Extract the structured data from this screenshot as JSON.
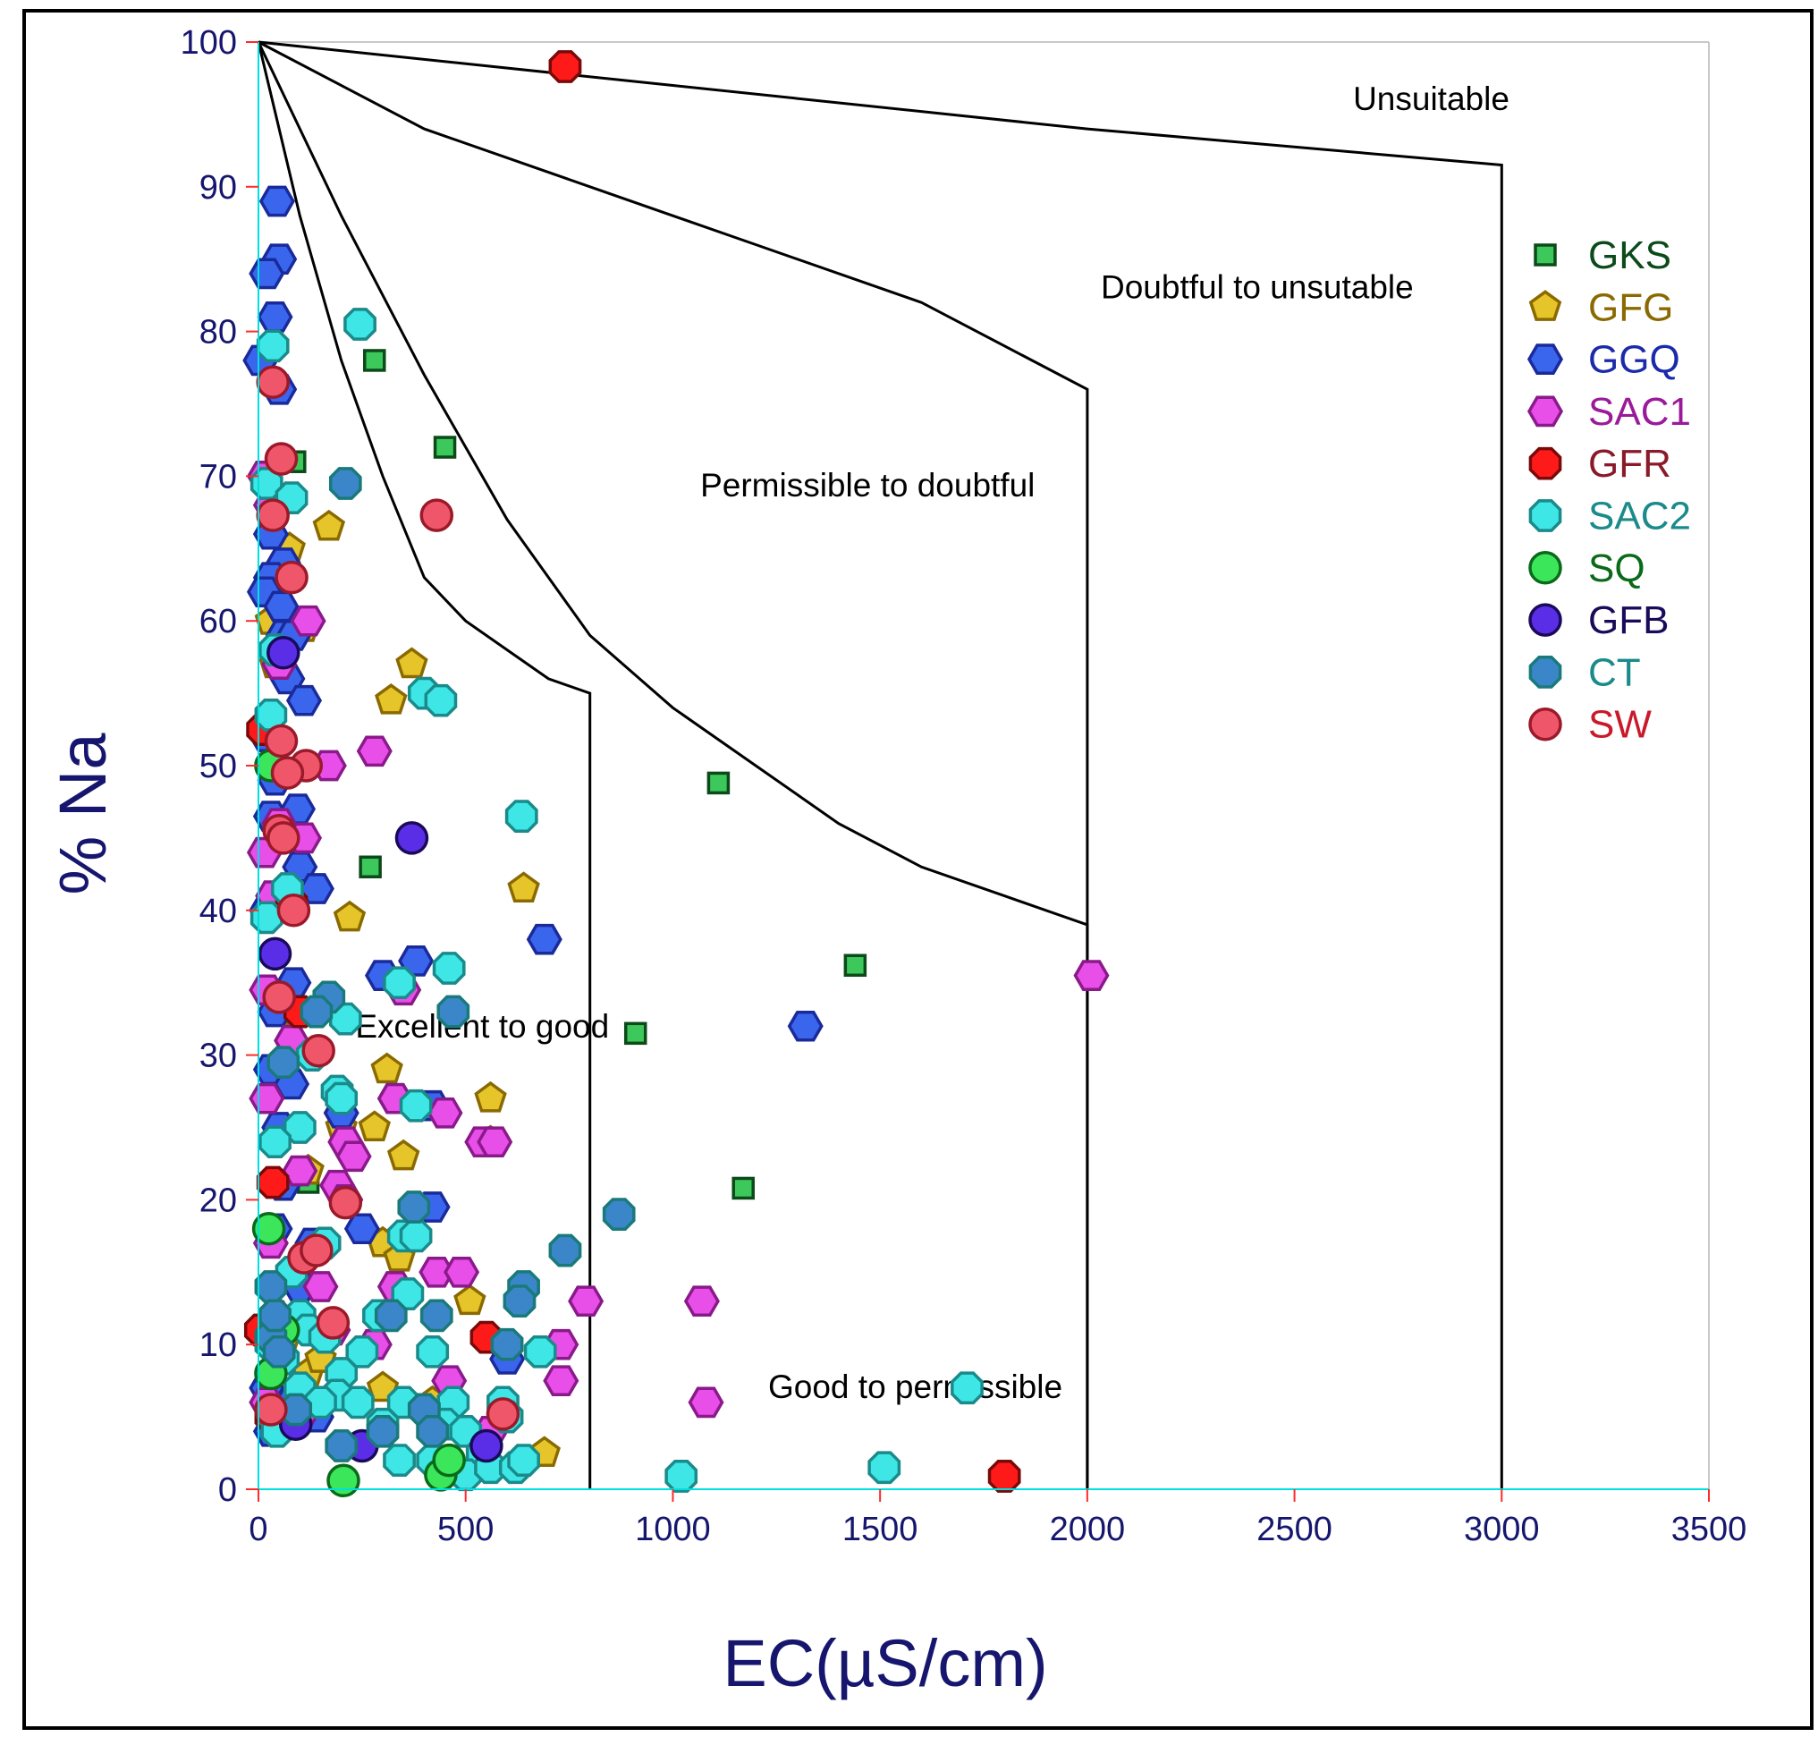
{
  "chart_data": {
    "type": "scatter",
    "title": "",
    "xlabel": "EC(µS/cm)",
    "ylabel": "% Na",
    "xlim": [
      0,
      3500
    ],
    "ylim": [
      0,
      100
    ],
    "x_ticks": [
      "0",
      "500",
      "1000",
      "1500",
      "2000",
      "2500",
      "3000",
      "3500"
    ],
    "y_ticks": [
      "0",
      "10",
      "20",
      "30",
      "40",
      "50",
      "60",
      "70",
      "80",
      "90",
      "100"
    ],
    "grid": false,
    "legend_position": "right",
    "region_labels": [
      {
        "text": "Unsuitable",
        "x": 2830,
        "y": 95.3
      },
      {
        "text": "Doubtful to unsutable",
        "x": 2410,
        "y": 82.3
      },
      {
        "text": "Permissible to doubtful",
        "x": 1470,
        "y": 68.6
      },
      {
        "text": "Excellent to good",
        "x": 540,
        "y": 31.2
      },
      {
        "text": "Good to permissible",
        "x": 1585,
        "y": 6.3
      }
    ],
    "boundary_lines": [
      {
        "name": "excellent-good-boundary",
        "points": [
          [
            0,
            100
          ],
          [
            100,
            88
          ],
          [
            200,
            78
          ],
          [
            300,
            70
          ],
          [
            400,
            63
          ],
          [
            500,
            60
          ],
          [
            600,
            58
          ],
          [
            700,
            56
          ],
          [
            800,
            55
          ],
          [
            800,
            0
          ]
        ]
      },
      {
        "name": "good-permissible-boundary",
        "points": [
          [
            0,
            100
          ],
          [
            200,
            88
          ],
          [
            400,
            77
          ],
          [
            600,
            67
          ],
          [
            800,
            59
          ],
          [
            1000,
            54
          ],
          [
            1200,
            50
          ],
          [
            1400,
            46
          ],
          [
            1600,
            43
          ],
          [
            1800,
            41
          ],
          [
            2000,
            39
          ],
          [
            2000,
            0
          ]
        ]
      },
      {
        "name": "permissible-doubtful-boundary",
        "points": [
          [
            0,
            100
          ],
          [
            400,
            94
          ],
          [
            800,
            90
          ],
          [
            1200,
            86
          ],
          [
            1600,
            82
          ],
          [
            2000,
            76
          ],
          [
            2000,
            0
          ]
        ]
      },
      {
        "name": "doubtful-unsuitable-boundary",
        "points": [
          [
            0,
            100
          ],
          [
            1000,
            97
          ],
          [
            2000,
            94
          ],
          [
            3000,
            91.5
          ],
          [
            3000,
            0
          ]
        ]
      }
    ],
    "series": [
      {
        "name": "GKS",
        "marker": "square",
        "color": "#3cc85a",
        "stroke": "#0c4a1a",
        "text_color": "#0c4a1a",
        "points": [
          [
            88,
            71
          ],
          [
            280,
            78
          ],
          [
            450,
            72
          ],
          [
            270,
            43
          ],
          [
            910,
            31.5
          ],
          [
            1110,
            48.8
          ],
          [
            1440,
            36.2
          ],
          [
            1170,
            20.8
          ],
          [
            120,
            21.2
          ]
        ]
      },
      {
        "name": "GFG",
        "marker": "pentagon",
        "color": "#e6c52a",
        "stroke": "#8a6a00",
        "text_color": "#8a6a00",
        "points": [
          [
            170,
            66.5
          ],
          [
            110,
            59.5
          ],
          [
            370,
            57
          ],
          [
            320,
            54.5
          ],
          [
            640,
            41.5
          ],
          [
            220,
            39.5
          ],
          [
            310,
            29
          ],
          [
            560,
            27
          ],
          [
            280,
            25
          ],
          [
            350,
            23
          ],
          [
            120,
            22
          ],
          [
            300,
            17
          ],
          [
            340,
            16
          ],
          [
            510,
            13
          ],
          [
            120,
            8
          ],
          [
            300,
            7
          ],
          [
            690,
            2.5
          ],
          [
            30,
            60
          ],
          [
            40,
            57
          ],
          [
            75,
            65
          ],
          [
            90,
            33
          ],
          [
            200,
            25
          ],
          [
            560,
            24
          ],
          [
            60,
            10
          ],
          [
            150,
            9
          ],
          [
            420,
            6
          ]
        ]
      },
      {
        "name": "GGQ",
        "marker": "hexagon",
        "color": "#3a66ee",
        "stroke": "#1a2a9a",
        "text_color": "#1a2aaa",
        "points": [
          [
            45,
            89
          ],
          [
            50,
            85
          ],
          [
            20,
            84
          ],
          [
            40,
            81
          ],
          [
            5,
            78
          ],
          [
            50,
            76
          ],
          [
            30,
            66
          ],
          [
            60,
            64
          ],
          [
            30,
            63
          ],
          [
            15,
            62
          ],
          [
            55,
            61
          ],
          [
            60,
            59
          ],
          [
            85,
            59
          ],
          [
            70,
            56
          ],
          [
            110,
            54.5
          ],
          [
            20,
            52
          ],
          [
            40,
            49
          ],
          [
            95,
            47
          ],
          [
            30,
            46.5
          ],
          [
            70,
            45
          ],
          [
            100,
            43
          ],
          [
            140,
            41.5
          ],
          [
            20,
            40
          ],
          [
            690,
            38
          ],
          [
            85,
            35
          ],
          [
            300,
            35.5
          ],
          [
            380,
            36.5
          ],
          [
            40,
            33
          ],
          [
            1320,
            32
          ],
          [
            30,
            29
          ],
          [
            80,
            28
          ],
          [
            420,
            26.5
          ],
          [
            330,
            27
          ],
          [
            50,
            25
          ],
          [
            250,
            18
          ],
          [
            420,
            19.5
          ],
          [
            40,
            18
          ],
          [
            130,
            17
          ],
          [
            100,
            14
          ],
          [
            600,
            9
          ],
          [
            80,
            6
          ],
          [
            30,
            4
          ],
          [
            20,
            7
          ],
          [
            140,
            5
          ],
          [
            60,
            21
          ],
          [
            200,
            26
          ]
        ]
      },
      {
        "name": "SAC1",
        "marker": "hexagon",
        "color": "#e84ee8",
        "stroke": "#8a1a8a",
        "text_color": "#9a1a9a",
        "points": [
          [
            15,
            70
          ],
          [
            30,
            68
          ],
          [
            120,
            60
          ],
          [
            50,
            57
          ],
          [
            170,
            50
          ],
          [
            280,
            51
          ],
          [
            50,
            46
          ],
          [
            110,
            45
          ],
          [
            15,
            44
          ],
          [
            35,
            41
          ],
          [
            20,
            34.5
          ],
          [
            80,
            31
          ],
          [
            20,
            27
          ],
          [
            330,
            27
          ],
          [
            450,
            26
          ],
          [
            210,
            24
          ],
          [
            230,
            23
          ],
          [
            540,
            24
          ],
          [
            570,
            24
          ],
          [
            100,
            22
          ],
          [
            190,
            21
          ],
          [
            30,
            17
          ],
          [
            150,
            14
          ],
          [
            330,
            14
          ],
          [
            430,
            15
          ],
          [
            490,
            15
          ],
          [
            790,
            13
          ],
          [
            1070,
            13
          ],
          [
            730,
            10
          ],
          [
            730,
            7.5
          ],
          [
            1080,
            6
          ],
          [
            280,
            10
          ],
          [
            460,
            7.5
          ],
          [
            20,
            6
          ],
          [
            100,
            5
          ],
          [
            560,
            4
          ],
          [
            2010,
            35.5
          ],
          [
            40,
            12
          ],
          [
            210,
            20
          ],
          [
            350,
            34.5
          ],
          [
            180,
            11
          ]
        ]
      },
      {
        "name": "GFR",
        "marker": "octagon",
        "color": "#ff1a1a",
        "stroke": "#7a0a0a",
        "text_color": "#8a1a2a",
        "points": [
          [
            740,
            98.3
          ],
          [
            80,
            40.5
          ],
          [
            35,
            21.2
          ],
          [
            550,
            10.5
          ],
          [
            1800,
            0.9
          ],
          [
            30,
            5
          ],
          [
            5,
            11
          ],
          [
            10,
            52.5
          ],
          [
            100,
            33
          ]
        ]
      },
      {
        "name": "SAC2",
        "marker": "octagon",
        "color": "#3ee6e6",
        "stroke": "#1a8a8a",
        "text_color": "#1a8a8a",
        "points": [
          [
            245,
            80.5
          ],
          [
            35,
            79
          ],
          [
            20,
            69.5
          ],
          [
            80,
            68.5
          ],
          [
            40,
            58
          ],
          [
            30,
            53.5
          ],
          [
            400,
            55
          ],
          [
            440,
            54.5
          ],
          [
            635,
            46.5
          ],
          [
            70,
            41.5
          ],
          [
            20,
            39.5
          ],
          [
            460,
            36
          ],
          [
            340,
            35
          ],
          [
            210,
            32.5
          ],
          [
            130,
            30
          ],
          [
            190,
            27.5
          ],
          [
            200,
            27
          ],
          [
            380,
            26.5
          ],
          [
            100,
            25
          ],
          [
            40,
            24
          ],
          [
            160,
            17
          ],
          [
            350,
            17.5
          ],
          [
            380,
            17.5
          ],
          [
            80,
            15
          ],
          [
            100,
            12
          ],
          [
            360,
            13.5
          ],
          [
            290,
            12
          ],
          [
            120,
            11
          ],
          [
            160,
            10.5
          ],
          [
            250,
            9.5
          ],
          [
            420,
            9.5
          ],
          [
            680,
            9.5
          ],
          [
            200,
            8
          ],
          [
            190,
            6.5
          ],
          [
            240,
            6
          ],
          [
            350,
            6
          ],
          [
            470,
            6
          ],
          [
            590,
            6
          ],
          [
            600,
            5
          ],
          [
            300,
            4.5
          ],
          [
            400,
            5.5
          ],
          [
            450,
            4.5
          ],
          [
            500,
            4
          ],
          [
            540,
            2.5
          ],
          [
            340,
            2
          ],
          [
            420,
            2
          ],
          [
            500,
            1
          ],
          [
            560,
            1.5
          ],
          [
            620,
            1.5
          ],
          [
            640,
            2
          ],
          [
            1020,
            0.9
          ],
          [
            1510,
            1.5
          ],
          [
            1710,
            7
          ],
          [
            45,
            4
          ],
          [
            100,
            7
          ],
          [
            150,
            6
          ],
          [
            30,
            10
          ],
          [
            60,
            9
          ]
        ]
      },
      {
        "name": "SQ",
        "marker": "circle",
        "color": "#3ce65a",
        "stroke": "#0a6a1a",
        "text_color": "#0a6a1a",
        "points": [
          [
            30,
            50
          ],
          [
            25,
            18
          ],
          [
            205,
            0.6
          ],
          [
            440,
            1
          ],
          [
            460,
            2
          ],
          [
            30,
            8
          ],
          [
            60,
            11
          ]
        ]
      },
      {
        "name": "GFB",
        "marker": "circle",
        "color": "#5a2ee6",
        "stroke": "#1a0a5a",
        "text_color": "#1a0a5a",
        "points": [
          [
            60,
            57.8
          ],
          [
            370,
            45
          ],
          [
            40,
            37
          ],
          [
            90,
            4.5
          ],
          [
            250,
            3
          ],
          [
            550,
            3
          ]
        ]
      },
      {
        "name": "CT",
        "marker": "octagon",
        "color": "#3a86c8",
        "stroke": "#1a7a7a",
        "text_color": "#1a8a8a",
        "points": [
          [
            210,
            69.5
          ],
          [
            470,
            33
          ],
          [
            170,
            34
          ],
          [
            140,
            33
          ],
          [
            60,
            29.5
          ],
          [
            375,
            19.5
          ],
          [
            870,
            19
          ],
          [
            740,
            16.5
          ],
          [
            640,
            14
          ],
          [
            630,
            13
          ],
          [
            320,
            12
          ],
          [
            430,
            12
          ],
          [
            30,
            14
          ],
          [
            30,
            10.5
          ],
          [
            50,
            9.5
          ],
          [
            600,
            10
          ],
          [
            90,
            5.5
          ],
          [
            200,
            3
          ],
          [
            300,
            4
          ],
          [
            400,
            5.5
          ],
          [
            420,
            4
          ],
          [
            40,
            12
          ]
        ]
      },
      {
        "name": "SW",
        "marker": "circle",
        "color": "#f0566a",
        "stroke": "#9a1a2a",
        "text_color": "#c81a2a",
        "points": [
          [
            35,
            76.5
          ],
          [
            55,
            71.2
          ],
          [
            35,
            67.3
          ],
          [
            430,
            67.3
          ],
          [
            80,
            63
          ],
          [
            55,
            51.7
          ],
          [
            115,
            50
          ],
          [
            70,
            49.5
          ],
          [
            50,
            45.5
          ],
          [
            60,
            45
          ],
          [
            85,
            40
          ],
          [
            50,
            34
          ],
          [
            145,
            30.3
          ],
          [
            210,
            19.8
          ],
          [
            110,
            16
          ],
          [
            140,
            16.5
          ],
          [
            180,
            11.5
          ],
          [
            590,
            5.2
          ],
          [
            30,
            5.5
          ]
        ]
      }
    ]
  }
}
